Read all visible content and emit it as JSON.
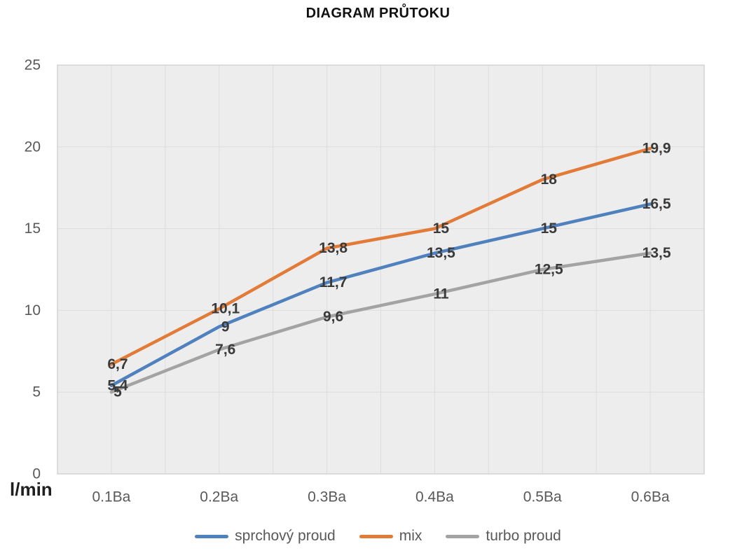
{
  "chart_data": {
    "type": "line",
    "title": "DIAGRAM PRŮTOKU",
    "categories": [
      "0.1Ba",
      "0.2Ba",
      "0.3Ba",
      "0.4Ba",
      "0.5Ba",
      "0.6Ba"
    ],
    "series": [
      {
        "name": "sprchový proud",
        "color": "#4e81bd",
        "values": [
          5.4,
          9,
          11.7,
          13.5,
          15,
          16.5
        ],
        "labels": [
          "5,4",
          "9",
          "11,7",
          "13,5",
          "15",
          "16,5"
        ]
      },
      {
        "name": "mix",
        "color": "#e27b38",
        "values": [
          6.7,
          10.1,
          13.8,
          15,
          18,
          19.9
        ],
        "labels": [
          "6,7",
          "10,1",
          "13,8",
          "15",
          "18",
          "19,9"
        ]
      },
      {
        "name": "turbo proud",
        "color": "#a3a3a3",
        "values": [
          5,
          7.6,
          9.6,
          11,
          12.5,
          13.5
        ],
        "labels": [
          "5",
          "7,6",
          "9,6",
          "11",
          "12,5",
          "13,5"
        ]
      }
    ],
    "xlabel": "",
    "ylabel": "l/min",
    "ylim": [
      0,
      25
    ],
    "yticks": [
      "0",
      "5",
      "10",
      "15",
      "20",
      "25"
    ],
    "grid": true,
    "legend_position": "bottom",
    "plot_background": "#ededed",
    "gridline_color": "#dddddd",
    "plot_border_color": "#d4d4d4",
    "axis_text_color": "#595959",
    "data_label_color": "#3a3a3a"
  }
}
